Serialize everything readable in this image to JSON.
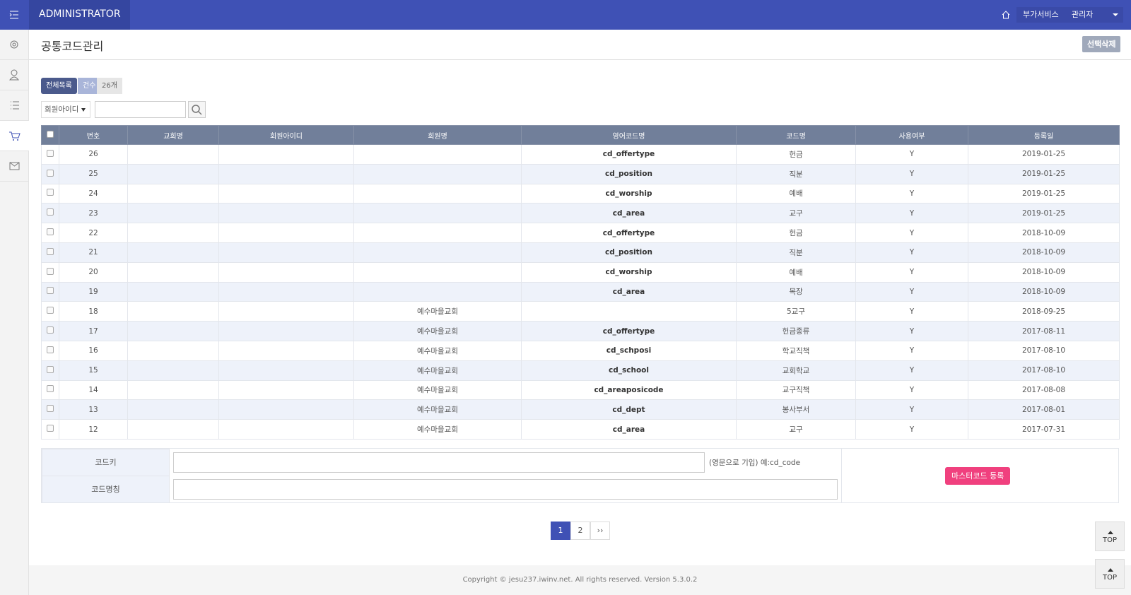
{
  "header": {
    "brand": "ADMINISTRATOR",
    "links": [
      "부가서비스",
      "관리자"
    ]
  },
  "page": {
    "title": "공통코드관리",
    "delete_button": "선택삭제"
  },
  "list": {
    "all_button": "전체목록",
    "count_label": "건수",
    "count": "26개"
  },
  "search": {
    "field": "회원아이디"
  },
  "table": {
    "columns": [
      "번호",
      "교회명",
      "회원아이디",
      "회원명",
      "영어코드명",
      "코드명",
      "사용여부",
      "등록일"
    ],
    "rows": [
      {
        "no": 26,
        "code": "cd_offertype",
        "name": "헌금",
        "use": "Y",
        "date": "2019-01-25"
      },
      {
        "no": 25,
        "code": "cd_position",
        "name": "직분",
        "use": "Y",
        "date": "2019-01-25"
      },
      {
        "no": 24,
        "code": "cd_worship",
        "name": "예배",
        "use": "Y",
        "date": "2019-01-25"
      },
      {
        "no": 23,
        "code": "cd_area",
        "name": "교구",
        "use": "Y",
        "date": "2019-01-25"
      },
      {
        "no": 22,
        "code": "cd_offertype",
        "name": "헌금",
        "use": "Y",
        "date": "2018-10-09"
      },
      {
        "no": 21,
        "code": "cd_position",
        "name": "직분",
        "use": "Y",
        "date": "2018-10-09"
      },
      {
        "no": 20,
        "code": "cd_worship",
        "name": "예배",
        "use": "Y",
        "date": "2018-10-09"
      },
      {
        "no": 19,
        "code": "cd_area",
        "name": "목장",
        "use": "Y",
        "date": "2018-10-09"
      },
      {
        "no": 18,
        "member": "예수마을교회",
        "name": "5교구",
        "use": "Y",
        "date": "2018-09-25"
      },
      {
        "no": 17,
        "member": "예수마을교회",
        "code": "cd_offertype",
        "name": "헌금종류",
        "use": "Y",
        "date": "2017-08-11"
      },
      {
        "no": 16,
        "member": "예수마을교회",
        "code": "cd_schposi",
        "name": "학교직책",
        "use": "Y",
        "date": "2017-08-10"
      },
      {
        "no": 15,
        "member": "예수마을교회",
        "code": "cd_school",
        "name": "교회학교",
        "use": "Y",
        "date": "2017-08-10"
      },
      {
        "no": 14,
        "member": "예수마을교회",
        "code": "cd_areaposicode",
        "name": "교구직책",
        "use": "Y",
        "date": "2017-08-08"
      },
      {
        "no": 13,
        "member": "예수마을교회",
        "code": "cd_dept",
        "name": "봉사부서",
        "use": "Y",
        "date": "2017-08-01"
      },
      {
        "no": 12,
        "member": "예수마을교회",
        "code": "cd_area",
        "name": "교구",
        "use": "Y",
        "date": "2017-07-31"
      }
    ]
  },
  "form": {
    "fields": [
      {
        "label": "코드키",
        "hint": "(영문으로 기입) 예:cd_code"
      },
      {
        "label": "코드명칭"
      }
    ],
    "submit": "마스터코드 등록"
  },
  "pagination": {
    "pages": [
      1,
      2
    ],
    "next": "››"
  },
  "top_buttons": [
    "TOP",
    "TOP"
  ],
  "footer": "Copyright © jesu237.iwinv.net. All rights reserved. Version 5.3.0.2"
}
